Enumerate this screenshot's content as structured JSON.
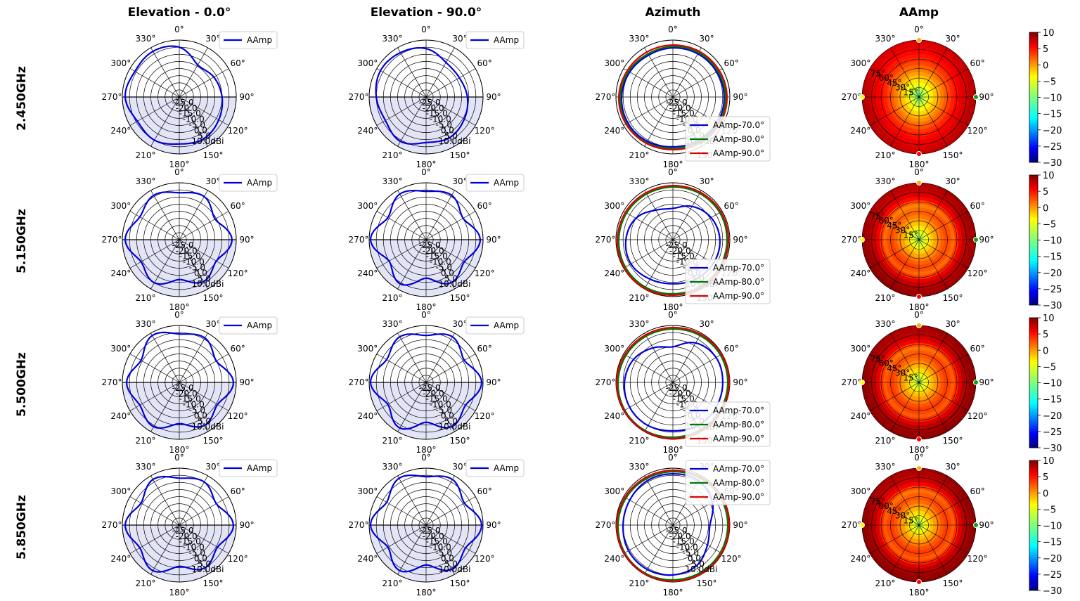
{
  "chart_data": {
    "type": "polar",
    "columns": [
      "Elevation - 0.0°",
      "Elevation - 90.0°",
      "Azimuth",
      "AAmp"
    ],
    "rows": [
      "2.450GHz",
      "5.150GHz",
      "5.500GHz",
      "5.850GHz"
    ],
    "radial_axis": {
      "min": -30,
      "max": 10,
      "step": 5,
      "unit": "dBi",
      "labels": [
        "-25.0",
        "-20.0",
        "-15.0",
        "-10.0",
        "-5.0",
        "0.0",
        "5.0",
        "10.0dBi"
      ]
    },
    "elevation_angle_labels": [
      "0°",
      "330°",
      "300°",
      "270°",
      "240°",
      "210°",
      "180°",
      "150°",
      "120°",
      "90°",
      "60°",
      "30°"
    ],
    "azimuth_angle_labels": [
      "90°",
      "60°",
      "30°",
      "0°",
      "330°",
      "300°",
      "270°",
      "240°",
      "210°",
      "180°",
      "150°",
      "120°"
    ],
    "heatmap_angle_labels": [
      "90°",
      "60°",
      "30°",
      "0°",
      "330°",
      "300°",
      "270°",
      "240°",
      "210°",
      "180°",
      "150°",
      "120°"
    ],
    "heatmap_radial_labels": [
      "15°",
      "30°",
      "45°",
      "60°",
      "75°"
    ],
    "colorbar": {
      "min": -30,
      "max": 10,
      "ticks": [
        "10",
        "5",
        "0",
        "−5",
        "−10",
        "−15",
        "−20",
        "−25",
        "−30"
      ],
      "colormap": "jet"
    },
    "elevation_legend": "AAmp",
    "azimuth_legend": [
      "AAmp-70.0°",
      "AAmp-80.0°",
      "AAmp-90.0°"
    ],
    "series_colors": {
      "elevation": "#0000dd",
      "az70": "#0000dd",
      "az80": "#007700",
      "az90": "#dd0000"
    },
    "patterns": [
      {
        "frequency": "2.450GHz",
        "elevation_0": [
          5,
          7,
          6,
          8,
          4,
          5,
          3,
          4,
          2,
          0,
          -2,
          -4
        ],
        "elevation_90": [
          4,
          6,
          7,
          5,
          3,
          6,
          2,
          3,
          1,
          -1,
          -3,
          -2
        ],
        "azimuth": {
          "70": [
            6,
            5.5,
            5,
            4.5,
            4,
            5,
            6,
            6.5,
            6,
            5,
            5.5,
            6
          ],
          "80": [
            7,
            6.5,
            6,
            5.5,
            5,
            6,
            7,
            7.5,
            7,
            6,
            6.5,
            7
          ],
          "90": [
            8,
            7.5,
            7,
            6.5,
            6.5,
            7,
            8,
            8,
            7.5,
            7,
            7.5,
            8
          ]
        }
      },
      {
        "frequency": "5.150GHz",
        "elevation_0": [
          3,
          6,
          2,
          8,
          1,
          5,
          -2,
          4,
          0,
          7,
          -1,
          5
        ],
        "elevation_90": [
          4,
          7,
          1,
          9,
          0,
          6,
          -3,
          5,
          1,
          8,
          0,
          6
        ],
        "azimuth": {
          "70": [
            3,
            1,
            -3,
            -8,
            -6,
            0,
            3,
            4,
            2,
            1,
            2,
            3
          ],
          "80": [
            8,
            8,
            7.5,
            7,
            7,
            7.5,
            8,
            8.5,
            8.5,
            8,
            8,
            8
          ],
          "90": [
            9,
            9,
            8.5,
            8,
            8,
            8.5,
            9,
            9.5,
            9.5,
            9,
            9,
            9
          ]
        }
      },
      {
        "frequency": "5.500GHz",
        "elevation_0": [
          4,
          8,
          1,
          7,
          2,
          6,
          -1,
          5,
          1,
          8,
          0,
          6
        ],
        "elevation_90": [
          3,
          7,
          2,
          9,
          1,
          7,
          -2,
          6,
          2,
          9,
          1,
          7
        ],
        "azimuth": {
          "70": [
            5,
            5,
            2,
            -5,
            -2,
            2,
            4,
            5,
            5,
            4,
            5,
            5
          ],
          "80": [
            8.5,
            8.5,
            8,
            7.5,
            7.5,
            8,
            8.5,
            9,
            9,
            8.5,
            8.5,
            8.5
          ],
          "90": [
            9.5,
            9.5,
            9,
            8.5,
            8.5,
            9,
            9.5,
            9.5,
            9.5,
            9.5,
            9.5,
            9.5
          ]
        }
      },
      {
        "frequency": "5.850GHz",
        "elevation_0": [
          3,
          7,
          1,
          8,
          2,
          7,
          -1,
          5,
          1,
          8,
          0,
          5
        ],
        "elevation_90": [
          4,
          8,
          2,
          9,
          1,
          7,
          -2,
          6,
          2,
          9,
          1,
          7
        ],
        "azimuth": {
          "70": [
            -4,
            2,
            6,
            6,
            6,
            5,
            5,
            6,
            6,
            5,
            3,
            -2
          ],
          "80": [
            8.5,
            8.5,
            8,
            7.5,
            7.5,
            8,
            8.5,
            9,
            9,
            8.5,
            8.5,
            8.5
          ],
          "90": [
            9.5,
            9.5,
            9,
            8.5,
            8.5,
            9,
            9.5,
            9.5,
            9.5,
            9.5,
            9.5,
            9.5
          ]
        }
      }
    ]
  }
}
